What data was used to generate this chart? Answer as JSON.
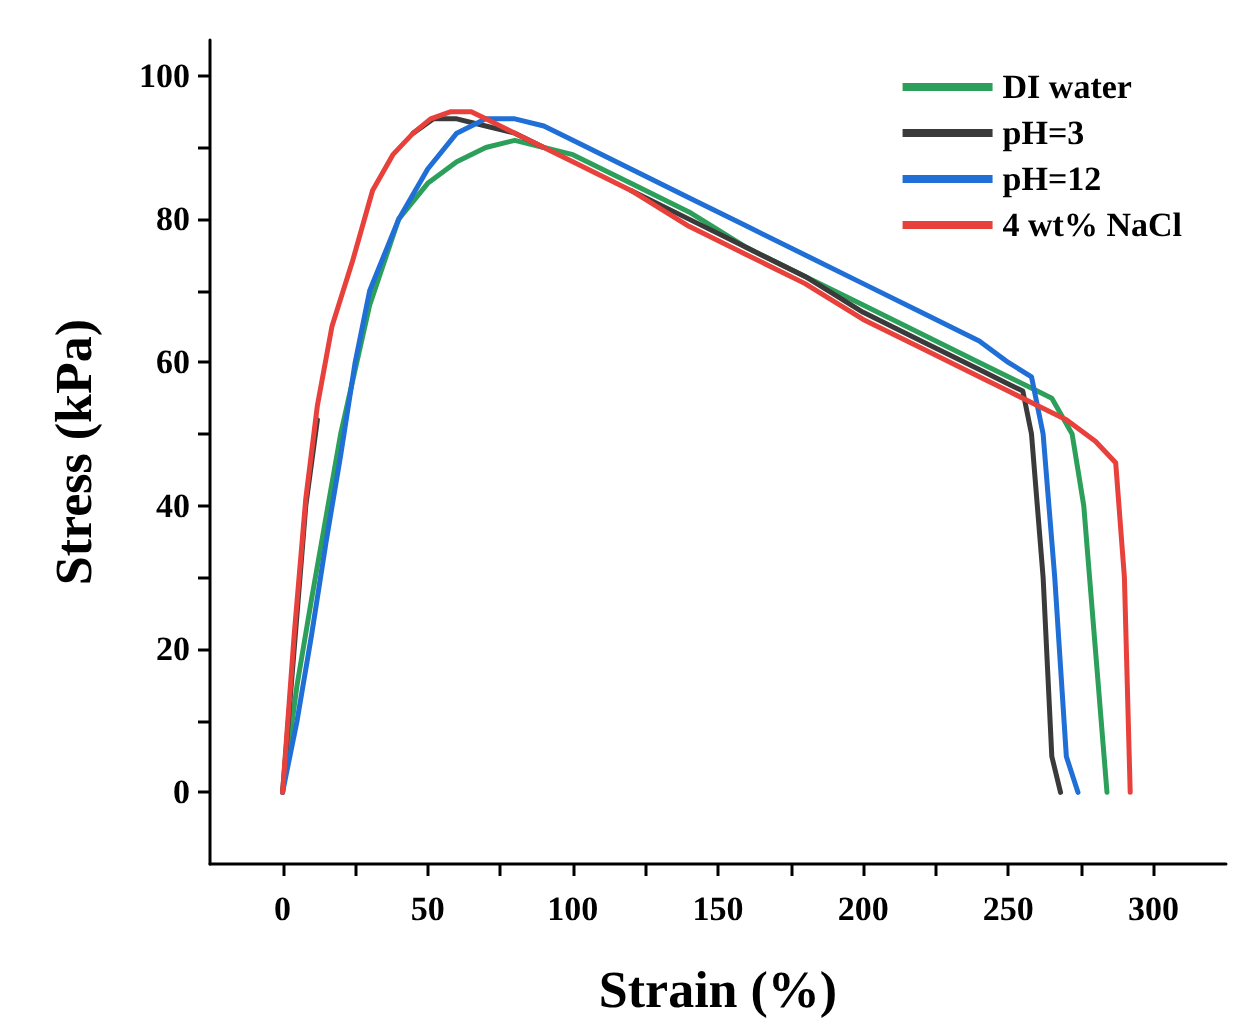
{
  "chart_data": {
    "type": "line",
    "xlabel": "Strain (%)",
    "ylabel": "Stress (kPa)",
    "xlim": [
      -25,
      325
    ],
    "ylim": [
      -10,
      105
    ],
    "xticks": [
      0,
      {
        "value": 25,
        "label": null
      },
      50,
      {
        "value": 75,
        "label": null
      },
      100,
      {
        "value": 125,
        "label": null
      },
      150,
      {
        "value": 175,
        "label": null
      },
      200,
      {
        "value": 225,
        "label": null
      },
      250,
      {
        "value": 275,
        "label": null
      },
      300
    ],
    "yticks": [
      0,
      {
        "value": 10,
        "label": null
      },
      20,
      {
        "value": 30,
        "label": null
      },
      40,
      {
        "value": 50,
        "label": null
      },
      60,
      {
        "value": 70,
        "label": null
      },
      80,
      {
        "value": 90,
        "label": null
      },
      100
    ],
    "grid": false,
    "legend": "top right",
    "marker": "none",
    "line_style": "solid",
    "series": [
      {
        "name": "DI water",
        "color": "#2ca05a",
        "x": [
          0,
          5,
          10,
          20,
          30,
          40,
          50,
          60,
          70,
          80,
          90,
          100,
          120,
          140,
          160,
          180,
          200,
          220,
          240,
          250,
          260,
          265,
          272,
          276,
          280,
          284
        ],
        "values": [
          0,
          15,
          27,
          50,
          68,
          80,
          85,
          88,
          90,
          91,
          90,
          89,
          85,
          81,
          76,
          72,
          68,
          64,
          60,
          58,
          56,
          55,
          50,
          40,
          20,
          0
        ]
      },
      {
        "name": "pH=3",
        "color": "#3a3a3a",
        "x": [
          0,
          4,
          8,
          12,
          17,
          24,
          31,
          38,
          45,
          52,
          60,
          70,
          80,
          90,
          100,
          120,
          140,
          160,
          180,
          200,
          220,
          240,
          250,
          255,
          258,
          262,
          265,
          268
        ],
        "values": [
          0,
          20,
          40,
          52,
          null,
          null,
          null,
          null,
          92,
          94,
          94,
          93,
          92,
          90,
          null,
          84,
          80,
          76,
          72,
          67,
          63,
          59,
          57,
          56,
          50,
          30,
          5,
          0
        ]
      },
      {
        "name": "pH=12",
        "color": "#1f6fd6",
        "x": [
          0,
          5,
          10,
          15,
          20,
          25,
          30,
          40,
          50,
          60,
          70,
          80,
          90,
          100,
          120,
          140,
          160,
          180,
          200,
          220,
          240,
          250,
          258,
          262,
          266,
          270,
          274
        ],
        "values": [
          0,
          10,
          22,
          35,
          47,
          60,
          70,
          80,
          87,
          92,
          94,
          94,
          93,
          91,
          87,
          83,
          79,
          75,
          71,
          67,
          63,
          60,
          58,
          50,
          30,
          5,
          0
        ]
      },
      {
        "name": "4 wt% NaCl",
        "color": "#e8403a",
        "x": [
          0,
          4,
          8,
          12,
          17,
          24,
          31,
          38,
          45,
          51,
          58,
          65,
          70,
          80,
          90,
          100,
          120,
          140,
          160,
          180,
          200,
          220,
          240,
          250,
          260,
          270,
          280,
          287,
          290,
          292
        ],
        "values": [
          0,
          22,
          41,
          54,
          65,
          74,
          84,
          89,
          92,
          94,
          95,
          95,
          94,
          92,
          90,
          88,
          84,
          79,
          75,
          71,
          66,
          62,
          58,
          56,
          54,
          52,
          49,
          46,
          30,
          0
        ]
      }
    ]
  }
}
